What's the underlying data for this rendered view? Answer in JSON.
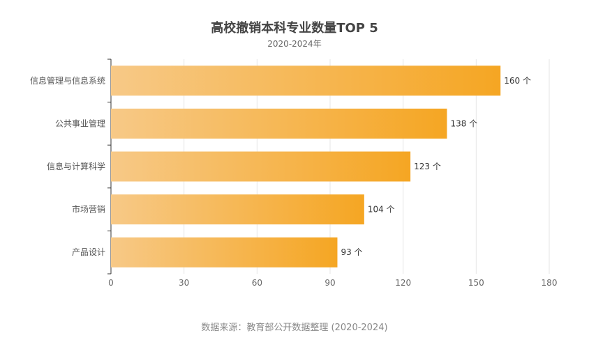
{
  "chart_data": {
    "type": "bar",
    "orientation": "horizontal",
    "title": "高校撤销本科专业数量TOP 5",
    "subtitle": "2020-2024年",
    "categories": [
      "信息管理与信息系统",
      "公共事业管理",
      "信息与计算科学",
      "市场营销",
      "产品设计"
    ],
    "values": [
      160,
      138,
      123,
      104,
      93
    ],
    "value_labels": [
      "160 个",
      "138 个",
      "123 个",
      "104 个",
      "93 个"
    ],
    "xlim": [
      0,
      180
    ],
    "xticks": [
      "0",
      "30",
      "60",
      "90",
      "120",
      "150",
      "180"
    ],
    "grid": "vertical",
    "bar_gradient": [
      "#f7c987",
      "#f5a623"
    ],
    "source": "数据来源：教育部公开数据整理 (2020-2024)"
  }
}
